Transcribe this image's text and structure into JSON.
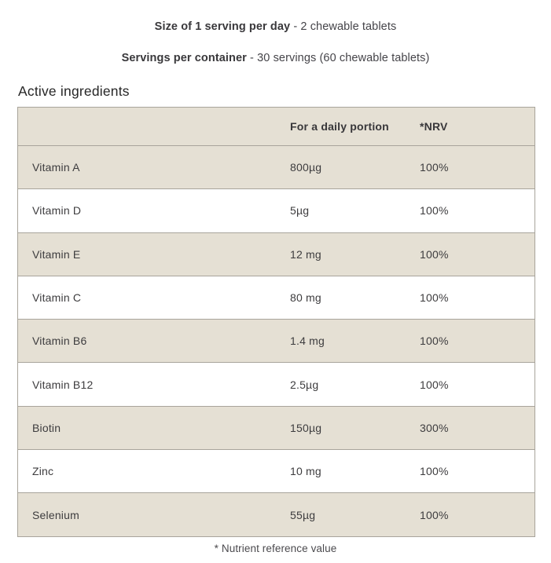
{
  "serving_info": {
    "line1_label": "Size of 1 serving per day",
    "line1_rest": " - 2 chewable tablets",
    "line2_label": "Servings per container",
    "line2_rest": " - 30 servings (60 chewable tablets)"
  },
  "section": {
    "title": "Active ingredients"
  },
  "table": {
    "columns": [
      "",
      "For a daily portion",
      "*NRV"
    ],
    "rows": [
      {
        "name": "Vitamin A",
        "amount": "800µg",
        "nrv": "100%"
      },
      {
        "name": "Vitamin D",
        "amount": "5µg",
        "nrv": "100%"
      },
      {
        "name": "Vitamin E",
        "amount": "12 mg",
        "nrv": "100%"
      },
      {
        "name": "Vitamin C",
        "amount": "80 mg",
        "nrv": "100%"
      },
      {
        "name": "Vitamin B6",
        "amount": "1.4 mg",
        "nrv": "100%"
      },
      {
        "name": "Vitamin B12",
        "amount": "2.5µg",
        "nrv": "100%"
      },
      {
        "name": "Biotin",
        "amount": "150µg",
        "nrv": "300%"
      },
      {
        "name": "Zinc",
        "amount": "10 mg",
        "nrv": "100%"
      },
      {
        "name": "Selenium",
        "amount": "55µg",
        "nrv": "100%"
      }
    ]
  },
  "footnote": "* Nutrient reference value",
  "colors": {
    "row_shaded": "#e5e0d4",
    "row_plain": "#ffffff",
    "border": "#a8a49b",
    "text": "#3d3c3e"
  }
}
